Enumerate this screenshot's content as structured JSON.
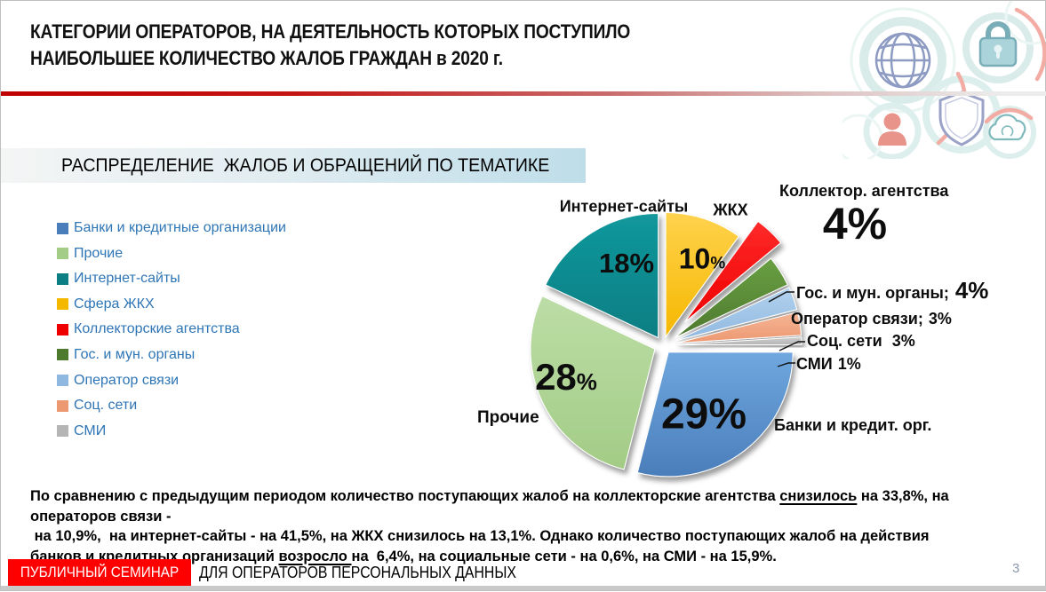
{
  "slide": {
    "title_line1": "КАТЕГОРИИ ОПЕРАТОРОВ, НА ДЕЯТЕЛЬНОСТЬ КОТОРЫХ ПОСТУПИЛО",
    "title_line2": "НАИБОЛЬШЕЕ КОЛИЧЕСТВО ЖАЛОБ ГРАЖДАН в 2020 г.",
    "subtitle": "РАСПРЕДЕЛЕНИЕ  ЖАЛОБ И ОБРАЩЕНИЙ ПО ТЕМАТИКЕ",
    "page_number": "3",
    "footer": {
      "badge": "ПУБЛИЧНЫЙ СЕМИНАР",
      "text": "ДЛЯ ОПЕРАТОРОВ ПЕРСОНАЛЬНЫХ ДАННЫХ"
    },
    "decorative_icons": [
      "globe-icon",
      "lock-icon",
      "shield-icon",
      "person-icon",
      "cloud-icon"
    ],
    "colors": {
      "legend_text": "#2E75B6",
      "footer_badge_bg": "#FF0000",
      "header_rule_red": "#C00000",
      "subtitle_band": "#BEDDE9",
      "page_number": "#8A99AD"
    }
  },
  "chart_data": {
    "type": "pie",
    "title": "РАСПРЕДЕЛЕНИЕ  ЖАЛОБ И ОБРАЩЕНИЙ ПО ТЕМАТИКЕ",
    "units": "%",
    "start_angle_cw_from_top_deg": 90,
    "legend_position": "left",
    "slices": [
      {
        "label": "Банки и кредитные организации",
        "callout": "Банки и кредит. орг.",
        "value": 29,
        "inside_num": "29",
        "inside_sym": "%",
        "color": "#4A7EBB",
        "color_light": "#6FA7DE"
      },
      {
        "label": "Прочие",
        "callout": "Прочие",
        "value": 28,
        "inside_num": "28",
        "inside_sym": "%",
        "color": "#A3CC86",
        "color_light": "#BCDDA6"
      },
      {
        "label": "Интернет-сайты",
        "callout": "Интернет-сайты",
        "value": 18,
        "inside_num": "18",
        "inside_sym": "%",
        "color": "#0B7E83",
        "color_light": "#12989C"
      },
      {
        "label": "Сфера ЖКХ",
        "callout": "ЖКХ",
        "value": 10,
        "inside_num": "10",
        "inside_sym": "%",
        "color": "#F5B800",
        "color_light": "#FFD24D"
      },
      {
        "label": "Коллекторские агентства",
        "callout": "Коллектор. агентства",
        "callout_value": "4%",
        "value": 4,
        "color": "#EE0000",
        "color_light": "#FF2A2A"
      },
      {
        "label": "Гос. и мун. органы",
        "callout": "Гос. и мун. органы;",
        "callout_value": "4%",
        "value": 4,
        "color": "#4E7A2E",
        "color_light": "#699F43"
      },
      {
        "label": "Оператор связи",
        "callout": "Оператор связи;",
        "callout_value": "3%",
        "value": 3,
        "color": "#8FB8E0",
        "color_light": "#B3D2EE"
      },
      {
        "label": "Соц. сети",
        "callout": "Соц. сети",
        "callout_value": "3%",
        "value": 3,
        "color": "#EC9870",
        "color_light": "#F5B596"
      },
      {
        "label": "СМИ",
        "callout": "СМИ",
        "callout_value": "1%",
        "value": 1,
        "color": "#B5B5B5",
        "color_light": "#CFCFCF"
      }
    ]
  },
  "note": {
    "lines": [
      [
        {
          "text": "По сравнению с предыдущим периодом количество поступающих жалоб на коллекторские агентства "
        },
        {
          "text": "снизилось",
          "underline": true
        },
        {
          "text": " на 33,8%, на операторов связи -"
        }
      ],
      [
        {
          "text": " на 10,9%,  на интернет-сайты - на 41,5%, на ЖКХ снизилось на 13,1%. Однако количество поступающих жалоб на действия"
        }
      ],
      [
        {
          "text": "банков и кредитных организаций "
        },
        {
          "text": "возросло ",
          "underline": true
        },
        {
          "text": "на  6,4%, на социальные сети - на 0,6%, на СМИ - на 15,9%."
        }
      ]
    ]
  }
}
